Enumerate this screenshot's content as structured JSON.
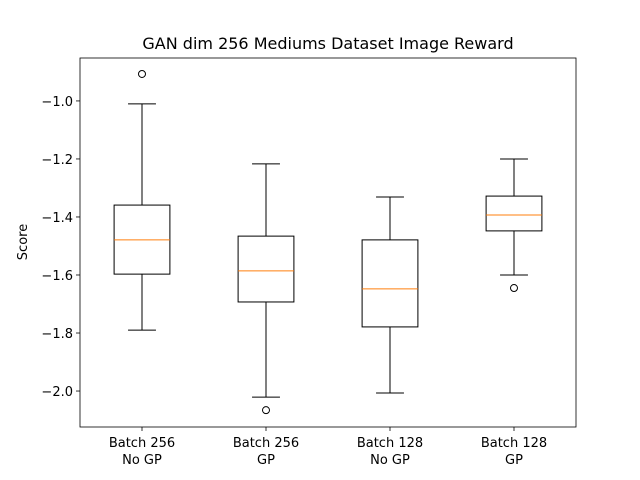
{
  "chart_data": {
    "type": "box",
    "title": "GAN dim 256 Mediums Dataset Image Reward",
    "ylabel": "Score",
    "categories": [
      [
        "Batch 256",
        "No GP"
      ],
      [
        "Batch 256",
        "GP"
      ],
      [
        "Batch 128",
        "No GP"
      ],
      [
        "Batch 128",
        "GP"
      ]
    ],
    "boxes": [
      {
        "whislo": -1.79,
        "q1": -1.597,
        "med": -1.479,
        "q3": -1.359,
        "whishi": -1.01,
        "fliers": [
          -0.907
        ]
      },
      {
        "whislo": -2.021,
        "q1": -1.693,
        "med": -1.586,
        "q3": -1.466,
        "whishi": -1.217,
        "fliers": [
          -2.066
        ]
      },
      {
        "whislo": -2.007,
        "q1": -1.779,
        "med": -1.648,
        "q3": -1.479,
        "whishi": -1.331,
        "fliers": []
      },
      {
        "whislo": -1.6,
        "q1": -1.448,
        "med": -1.393,
        "q3": -1.328,
        "whishi": -1.2,
        "fliers": [
          -1.645
        ]
      }
    ],
    "color": "#000000",
    "median_color": "#ff7f0e",
    "ylim": [
      -2.124,
      -0.852
    ],
    "yticks": [
      {
        "value": -2.0,
        "label": "−2.0"
      },
      {
        "value": -1.8,
        "label": "−1.8"
      },
      {
        "value": -1.6,
        "label": "−1.6"
      },
      {
        "value": -1.4,
        "label": "−1.4"
      },
      {
        "value": -1.2,
        "label": "−1.2"
      },
      {
        "value": -1.0,
        "label": "−1.0"
      }
    ],
    "grid": false
  }
}
